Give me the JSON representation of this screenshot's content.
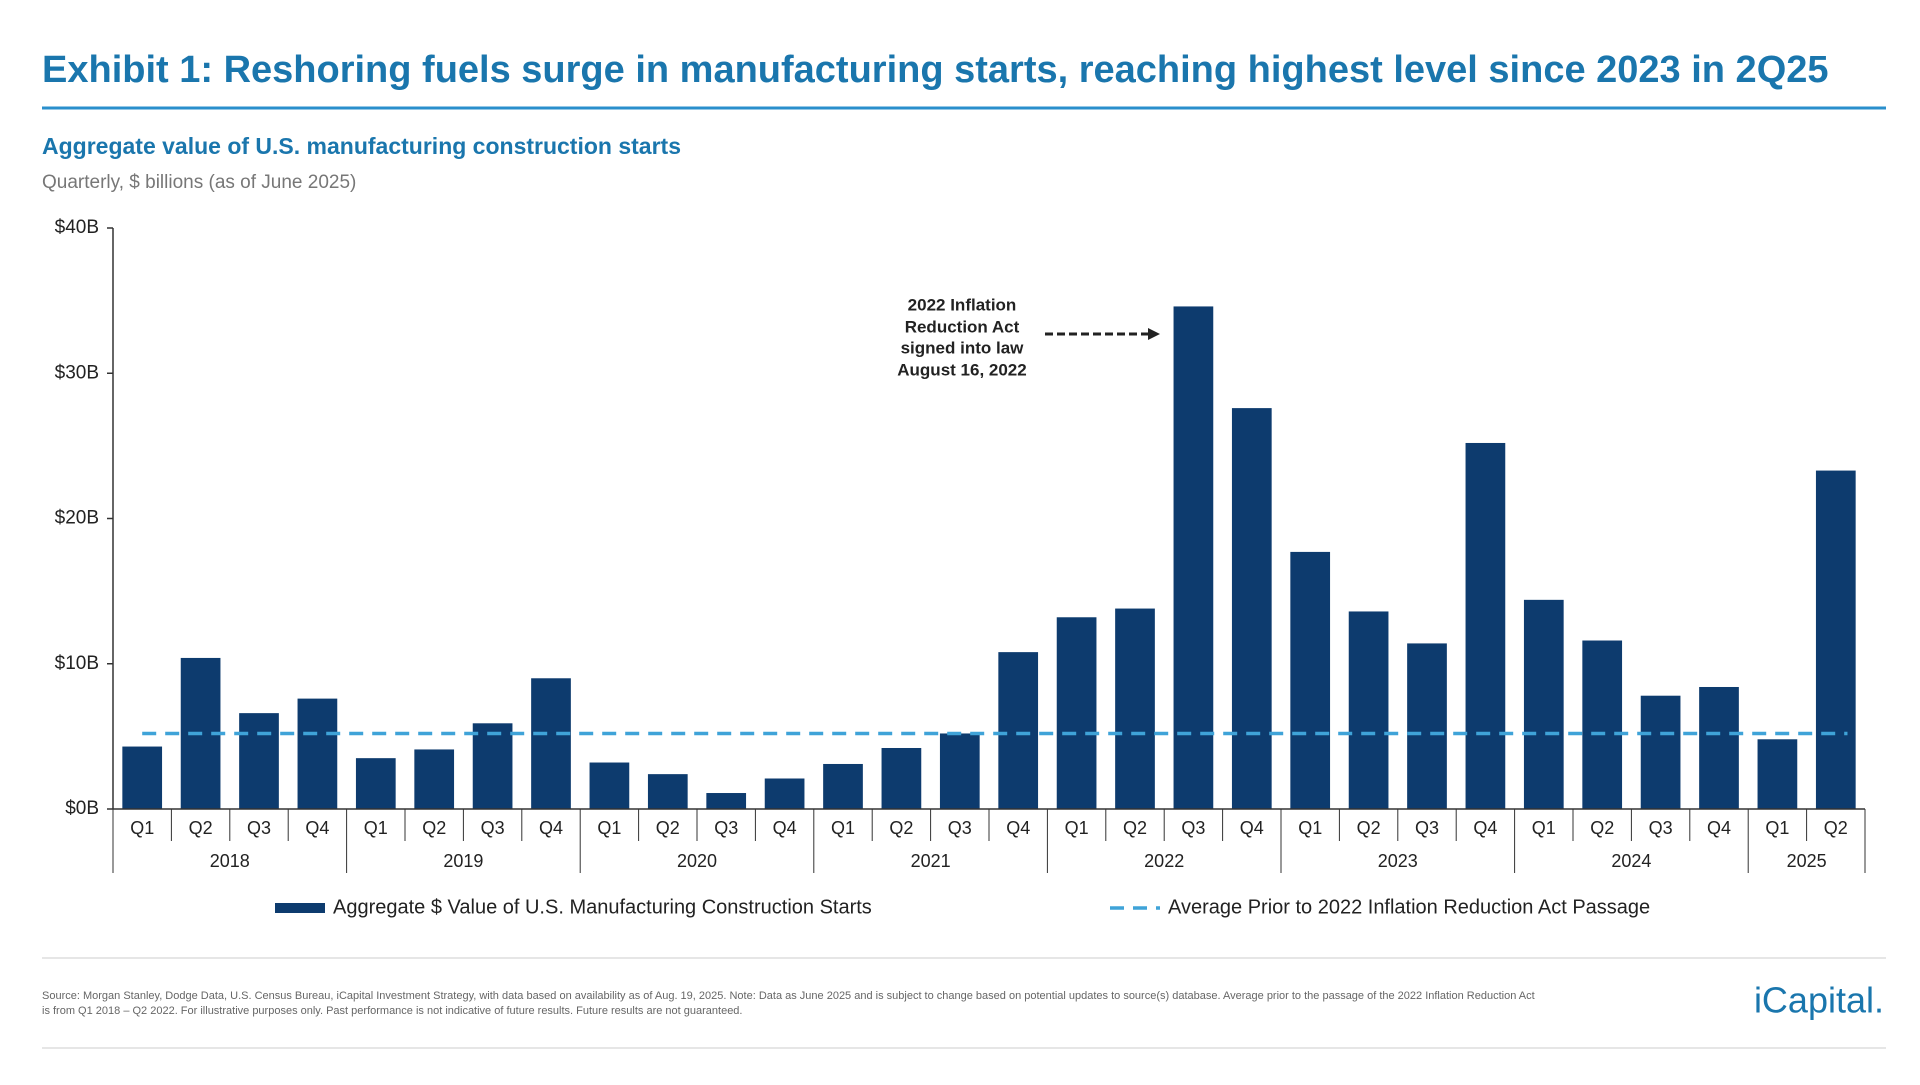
{
  "chart_data": {
    "type": "bar",
    "title": "Exhibit 1: Reshoring fuels surge in manufacturing starts, reaching highest level since 2023 in 2Q25",
    "subtitle": "Aggregate value of U.S. manufacturing construction starts",
    "subtitle2": "Quarterly, $ billions (as of June 2025)",
    "category_groups": [
      {
        "group": "2018",
        "labels": [
          "Q1",
          "Q2",
          "Q3",
          "Q4"
        ]
      },
      {
        "group": "2019",
        "labels": [
          "Q1",
          "Q2",
          "Q3",
          "Q4"
        ]
      },
      {
        "group": "2020",
        "labels": [
          "Q1",
          "Q2",
          "Q3",
          "Q4"
        ]
      },
      {
        "group": "2021",
        "labels": [
          "Q1",
          "Q2",
          "Q3",
          "Q4"
        ]
      },
      {
        "group": "2022",
        "labels": [
          "Q1",
          "Q2",
          "Q3",
          "Q4"
        ]
      },
      {
        "group": "2023",
        "labels": [
          "Q1",
          "Q2",
          "Q3",
          "Q4"
        ]
      },
      {
        "group": "2024",
        "labels": [
          "Q1",
          "Q2",
          "Q3",
          "Q4"
        ]
      },
      {
        "group": "2025",
        "labels": [
          "Q1",
          "Q2"
        ]
      }
    ],
    "series": [
      {
        "name": "Aggregate $ Value of U.S. Manufacturing Construction Starts",
        "color": "#0d3b6e",
        "values": [
          4.3,
          10.4,
          6.6,
          7.6,
          3.5,
          4.1,
          5.9,
          9.0,
          3.2,
          2.4,
          1.1,
          2.1,
          3.1,
          4.2,
          5.2,
          10.8,
          13.2,
          13.8,
          34.6,
          27.6,
          17.7,
          13.6,
          11.4,
          25.2,
          14.4,
          11.6,
          7.8,
          8.4,
          4.8,
          23.3
        ]
      }
    ],
    "reference_line": {
      "name": "Average Prior to 2022 Inflation Reduction Act Passage",
      "value": 5.2,
      "color": "#3fa3d8"
    },
    "ylim": [
      0,
      40
    ],
    "yticks": [
      {
        "value": 0,
        "label": "$0B"
      },
      {
        "value": 10,
        "label": "$10B"
      },
      {
        "value": 20,
        "label": "$20B"
      },
      {
        "value": 30,
        "label": "$30B"
      },
      {
        "value": 40,
        "label": "$40B"
      }
    ],
    "annotation": {
      "lines": [
        "2022 Inflation",
        "Reduction Act",
        "signed into law",
        "August 16, 2022"
      ]
    },
    "source": [
      "Source: Morgan Stanley, Dodge Data, U.S. Census Bureau, iCapital Investment Strategy, with data based on availability as of Aug. 19, 2025. Note: Data as June 2025 and is subject to change based on potential updates to source(s) database. Average prior to the passage of the 2022 Inflation Reduction Act",
      "is from Q1 2018 – Q2 2022. For illustrative purposes only. Past performance is not indicative of future results. Future results are not guaranteed."
    ],
    "logo": "iCapital."
  }
}
